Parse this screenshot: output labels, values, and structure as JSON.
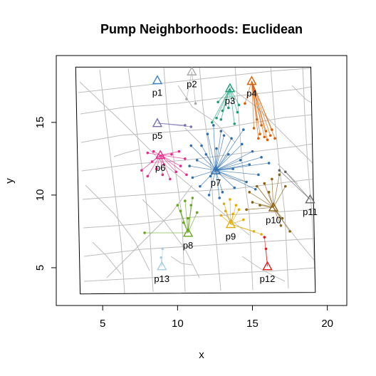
{
  "chart_data": {
    "type": "scatter",
    "title": "Pump Neighborhoods: Euclidean",
    "xlabel": "x",
    "ylabel": "y",
    "xlim": [
      1.9,
      21.3
    ],
    "ylim": [
      2.4,
      19.6
    ],
    "x_ticks": [
      5,
      10,
      15,
      20
    ],
    "y_ticks": [
      5,
      10,
      15
    ],
    "grid": false,
    "legend": "none",
    "map_frame": [
      [
        3.2,
        18.8
      ],
      [
        18.9,
        18.8
      ],
      [
        19.2,
        3.3
      ],
      [
        3.5,
        3.2
      ]
    ],
    "pumps": [
      {
        "id": "p1",
        "x": 8.65,
        "y": 17.9,
        "color": "#3b80c3"
      },
      {
        "id": "p2",
        "x": 10.95,
        "y": 18.5,
        "color": "#aaaaaa"
      },
      {
        "id": "p3",
        "x": 13.5,
        "y": 17.35,
        "color": "#1b9e77"
      },
      {
        "id": "p4",
        "x": 14.95,
        "y": 17.85,
        "color": "#d95f02"
      },
      {
        "id": "p5",
        "x": 8.65,
        "y": 14.95,
        "color": "#7570b3"
      },
      {
        "id": "p6",
        "x": 8.85,
        "y": 12.75,
        "color": "#e7298a"
      },
      {
        "id": "p7",
        "x": 12.55,
        "y": 11.7,
        "color": "#2f6fb0"
      },
      {
        "id": "p8",
        "x": 10.7,
        "y": 7.4,
        "color": "#66a61e"
      },
      {
        "id": "p9",
        "x": 13.55,
        "y": 8.0,
        "color": "#e6ab02"
      },
      {
        "id": "p10",
        "x": 16.4,
        "y": 9.15,
        "color": "#8c6111"
      },
      {
        "id": "p11",
        "x": 18.85,
        "y": 9.7,
        "color": "#666666"
      },
      {
        "id": "p12",
        "x": 16.0,
        "y": 5.1,
        "color": "#e31a1c"
      },
      {
        "id": "p13",
        "x": 8.95,
        "y": 5.1,
        "color": "#a6cee3"
      }
    ],
    "case_clusters": [
      {
        "pump": "p2",
        "points": [
          [
            11.2,
            16.3
          ],
          [
            10.6,
            16.6
          ]
        ]
      },
      {
        "pump": "p3",
        "points": [
          [
            12.6,
            15.3
          ],
          [
            13.0,
            15.8
          ],
          [
            13.4,
            16.0
          ],
          [
            14.0,
            15.7
          ],
          [
            12.3,
            15.0
          ],
          [
            13.8,
            14.9
          ],
          [
            12.9,
            15.2
          ],
          [
            14.1,
            16.2
          ],
          [
            12.7,
            16.4
          ]
        ]
      },
      {
        "pump": "p4",
        "points": [
          [
            15.3,
            15.2
          ],
          [
            15.6,
            14.8
          ],
          [
            15.9,
            14.4
          ],
          [
            16.2,
            14.1
          ],
          [
            16.5,
            13.9
          ],
          [
            15.5,
            14.2
          ],
          [
            15.8,
            14.0
          ],
          [
            15.1,
            14.6
          ],
          [
            16.0,
            13.8
          ],
          [
            15.4,
            13.9
          ],
          [
            16.3,
            14.5
          ],
          [
            14.5,
            16.3
          ]
        ]
      },
      {
        "pump": "p5",
        "points": [
          [
            10.9,
            14.7
          ],
          [
            10.5,
            14.8
          ]
        ]
      },
      {
        "pump": "p6",
        "points": [
          [
            8.0,
            12.9
          ],
          [
            8.3,
            12.3
          ],
          [
            8.6,
            11.8
          ],
          [
            9.0,
            11.4
          ],
          [
            9.5,
            11.1
          ],
          [
            9.9,
            11.6
          ],
          [
            10.2,
            12.0
          ],
          [
            10.5,
            12.5
          ],
          [
            10.1,
            13.0
          ],
          [
            9.6,
            12.8
          ],
          [
            7.6,
            11.7
          ],
          [
            8.0,
            11.3
          ],
          [
            10.6,
            11.4
          ],
          [
            9.1,
            12.1
          ],
          [
            8.4,
            13.0
          ]
        ]
      },
      {
        "pump": "p7",
        "points": [
          [
            11.3,
            12.4
          ],
          [
            11.6,
            13.4
          ],
          [
            12.0,
            14.2
          ],
          [
            12.4,
            14.8
          ],
          [
            12.9,
            14.4
          ],
          [
            13.6,
            13.9
          ],
          [
            14.3,
            13.5
          ],
          [
            15.0,
            13.0
          ],
          [
            15.6,
            12.6
          ],
          [
            16.1,
            12.2
          ],
          [
            15.4,
            11.4
          ],
          [
            14.6,
            10.9
          ],
          [
            13.8,
            10.5
          ],
          [
            13.0,
            10.2
          ],
          [
            12.1,
            10.0
          ],
          [
            11.5,
            10.6
          ],
          [
            11.0,
            11.2
          ],
          [
            10.8,
            12.0
          ],
          [
            12.6,
            13.2
          ],
          [
            13.4,
            12.8
          ],
          [
            14.2,
            12.4
          ],
          [
            13.7,
            11.8
          ],
          [
            12.2,
            11.3
          ],
          [
            11.9,
            12.8
          ],
          [
            14.8,
            12.1
          ],
          [
            13.1,
            14.1
          ],
          [
            15.2,
            10.4
          ],
          [
            10.9,
            13.4
          ],
          [
            12.8,
            9.8
          ],
          [
            14.4,
            14.5
          ]
        ]
      },
      {
        "pump": "p8",
        "points": [
          [
            10.5,
            9.6
          ],
          [
            10.9,
            9.3
          ],
          [
            10.2,
            8.9
          ],
          [
            11.3,
            8.8
          ],
          [
            10.7,
            8.4
          ],
          [
            10.0,
            9.3
          ],
          [
            11.0,
            9.8
          ],
          [
            10.4,
            8.1
          ],
          [
            7.8,
            7.4
          ]
        ]
      },
      {
        "pump": "p9",
        "points": [
          [
            13.1,
            9.4
          ],
          [
            13.5,
            9.7
          ],
          [
            13.9,
            9.3
          ],
          [
            13.2,
            8.9
          ],
          [
            13.7,
            8.7
          ],
          [
            14.1,
            9.0
          ],
          [
            12.9,
            8.6
          ],
          [
            14.4,
            8.3
          ],
          [
            15.1,
            7.5
          ],
          [
            15.6,
            7.3
          ]
        ]
      },
      {
        "pump": "p10",
        "points": [
          [
            14.8,
            10.2
          ],
          [
            15.3,
            10.6
          ],
          [
            15.8,
            10.8
          ],
          [
            16.3,
            11.1
          ],
          [
            16.8,
            11.4
          ],
          [
            17.2,
            10.6
          ],
          [
            15.0,
            9.5
          ],
          [
            15.5,
            9.3
          ],
          [
            14.6,
            9.0
          ],
          [
            17.0,
            8.4
          ],
          [
            17.5,
            7.5
          ],
          [
            16.9,
            7.9
          ],
          [
            16.1,
            10.2
          ]
        ]
      },
      {
        "pump": "p11",
        "points": [
          [
            16.8,
            11.7
          ],
          [
            17.2,
            11.6
          ]
        ]
      },
      {
        "pump": "p12",
        "points": [
          [
            15.8,
            7.1
          ],
          [
            15.9,
            6.3
          ]
        ]
      },
      {
        "pump": "p13",
        "points": [
          [
            9.0,
            6.3
          ],
          [
            8.9,
            5.7
          ]
        ]
      }
    ]
  }
}
